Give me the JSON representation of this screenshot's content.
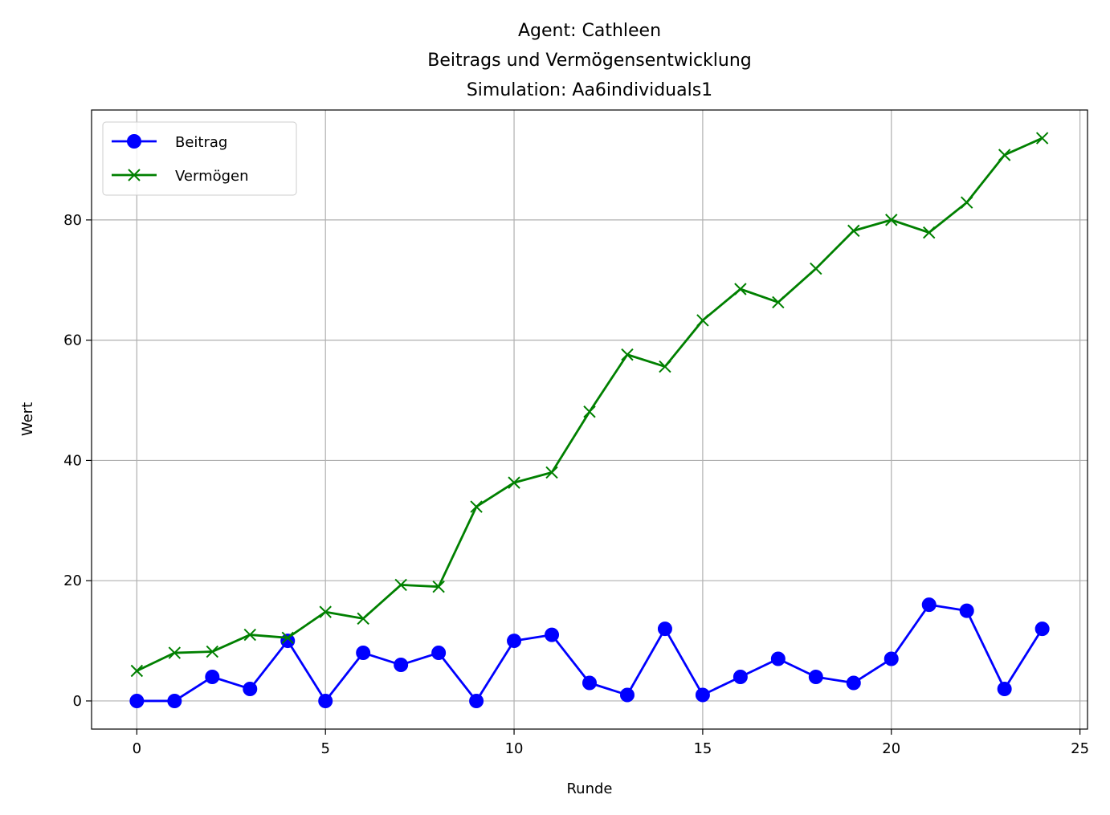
{
  "chart_data": {
    "type": "line",
    "title_lines": [
      "Agent: Cathleen",
      "Beitrags und Vermögensentwicklung",
      "Simulation: Aa6individuals1"
    ],
    "xlabel": "Runde",
    "ylabel": "Wert",
    "xlim": [
      -1.2,
      25.2
    ],
    "ylim": [
      -4.68,
      98.28
    ],
    "x_ticks": [
      0,
      5,
      10,
      15,
      20,
      25
    ],
    "y_ticks": [
      0,
      20,
      40,
      60,
      80
    ],
    "grid": true,
    "legend_position": "upper-left",
    "x": [
      0,
      1,
      2,
      3,
      4,
      5,
      6,
      7,
      8,
      9,
      10,
      11,
      12,
      13,
      14,
      15,
      16,
      17,
      18,
      19,
      20,
      21,
      22,
      23,
      24
    ],
    "series": [
      {
        "name": "Beitrag",
        "color": "#0000ff",
        "marker": "circle",
        "values": [
          0,
          0,
          4,
          2,
          10,
          0,
          8,
          6,
          8,
          0,
          10,
          11,
          3,
          1,
          12,
          1,
          4,
          7,
          4,
          3,
          7,
          16,
          15,
          2,
          12
        ]
      },
      {
        "name": "Vermögen",
        "color": "#008000",
        "marker": "x",
        "values": [
          5,
          8,
          8.2,
          11,
          10.5,
          14.8,
          13.7,
          19.3,
          19,
          32.3,
          36.3,
          38,
          48.1,
          57.6,
          55.6,
          63.3,
          68.5,
          66.3,
          71.9,
          78.2,
          80,
          77.9,
          82.9,
          90.8,
          93.6
        ]
      }
    ]
  }
}
